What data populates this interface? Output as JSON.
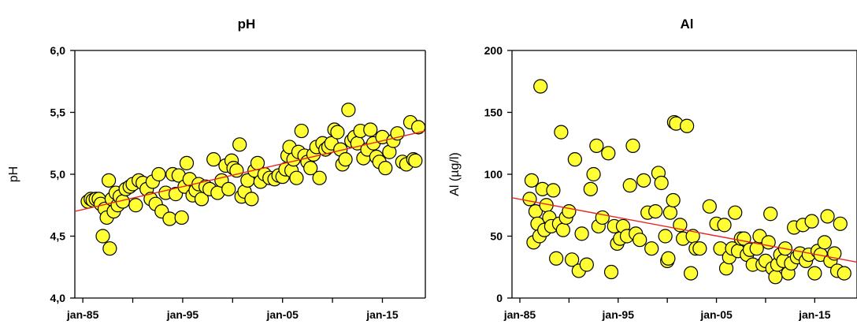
{
  "chart_data": [
    {
      "type": "scatter",
      "title": "pH",
      "xlabel": "",
      "ylabel": "pH",
      "ylim": [
        4.0,
        6.0
      ],
      "yticks": [
        4.0,
        4.5,
        5.0,
        5.5,
        6.0
      ],
      "ytick_labels": [
        "4,0",
        "4,5",
        "5,0",
        "5,5",
        "6,0"
      ],
      "xticks": [
        1985,
        1995,
        2005,
        2015
      ],
      "xtick_labels": [
        "jan-85",
        "jan-95",
        "jan-05",
        "jan-15"
      ],
      "xlim": [
        1984.2,
        2019.3
      ],
      "grid": false,
      "trendline": {
        "x": [
          1984.2,
          2019.3
        ],
        "y": [
          4.7,
          5.35
        ],
        "color": "#e8261f"
      },
      "marker": {
        "fill": "#ffff33",
        "stroke": "#000000"
      },
      "series": [
        {
          "points": [
            [
              1985.5,
              4.78
            ],
            [
              1985.8,
              4.8
            ],
            [
              1986.0,
              4.79
            ],
            [
              1986.3,
              4.8
            ],
            [
              1986.6,
              4.8
            ],
            [
              1986.8,
              4.76
            ],
            [
              1987.0,
              4.5
            ],
            [
              1987.2,
              4.72
            ],
            [
              1987.4,
              4.65
            ],
            [
              1987.6,
              4.95
            ],
            [
              1987.7,
              4.4
            ],
            [
              1987.9,
              4.8
            ],
            [
              1988.1,
              4.7
            ],
            [
              1988.3,
              4.85
            ],
            [
              1988.5,
              4.75
            ],
            [
              1988.7,
              4.82
            ],
            [
              1989.0,
              4.78
            ],
            [
              1989.3,
              4.88
            ],
            [
              1989.7,
              4.9
            ],
            [
              1990.0,
              4.92
            ],
            [
              1990.3,
              4.75
            ],
            [
              1990.6,
              4.95
            ],
            [
              1991.0,
              4.93
            ],
            [
              1991.4,
              4.88
            ],
            [
              1991.8,
              4.8
            ],
            [
              1992.0,
              4.94
            ],
            [
              1992.3,
              4.76
            ],
            [
              1992.6,
              5.0
            ],
            [
              1992.9,
              4.7
            ],
            [
              1993.3,
              4.85
            ],
            [
              1993.7,
              4.64
            ],
            [
              1994.0,
              5.0
            ],
            [
              1994.3,
              4.84
            ],
            [
              1994.6,
              4.99
            ],
            [
              1994.9,
              4.65
            ],
            [
              1995.2,
              4.9
            ],
            [
              1995.4,
              5.09
            ],
            [
              1995.7,
              4.96
            ],
            [
              1996.0,
              4.83
            ],
            [
              1996.3,
              4.87
            ],
            [
              1996.6,
              4.92
            ],
            [
              1996.9,
              4.8
            ],
            [
              1997.3,
              4.9
            ],
            [
              1997.7,
              4.88
            ],
            [
              1998.1,
              5.12
            ],
            [
              1998.5,
              4.85
            ],
            [
              1998.9,
              4.95
            ],
            [
              1999.3,
              5.07
            ],
            [
              1999.6,
              4.88
            ],
            [
              1999.9,
              5.11
            ],
            [
              2000.1,
              5.05
            ],
            [
              2000.4,
              5.03
            ],
            [
              2000.7,
              5.24
            ],
            [
              2000.9,
              4.82
            ],
            [
              2001.2,
              4.86
            ],
            [
              2001.5,
              4.95
            ],
            [
              2001.9,
              4.8
            ],
            [
              2002.2,
              5.03
            ],
            [
              2002.5,
              5.09
            ],
            [
              2002.8,
              4.94
            ],
            [
              2003.2,
              5.0
            ],
            [
              2003.7,
              4.97
            ],
            [
              2004.2,
              4.96
            ],
            [
              2004.6,
              4.99
            ],
            [
              2005.0,
              4.98
            ],
            [
              2005.3,
              5.04
            ],
            [
              2005.5,
              5.15
            ],
            [
              2005.7,
              5.22
            ],
            [
              2005.9,
              5.03
            ],
            [
              2006.1,
              5.12
            ],
            [
              2006.4,
              4.97
            ],
            [
              2006.6,
              5.18
            ],
            [
              2006.9,
              5.35
            ],
            [
              2007.2,
              5.15
            ],
            [
              2007.5,
              5.1
            ],
            [
              2007.8,
              5.05
            ],
            [
              2008.1,
              5.16
            ],
            [
              2008.4,
              5.22
            ],
            [
              2008.7,
              4.97
            ],
            [
              2009.0,
              5.25
            ],
            [
              2009.3,
              5.2
            ],
            [
              2009.6,
              5.22
            ],
            [
              2009.9,
              5.25
            ],
            [
              2010.2,
              5.36
            ],
            [
              2010.5,
              5.34
            ],
            [
              2010.8,
              5.2
            ],
            [
              2011.0,
              5.08
            ],
            [
              2011.3,
              5.12
            ],
            [
              2011.6,
              5.52
            ],
            [
              2011.9,
              5.27
            ],
            [
              2012.2,
              5.3
            ],
            [
              2012.5,
              5.25
            ],
            [
              2012.8,
              5.35
            ],
            [
              2013.1,
              5.13
            ],
            [
              2013.5,
              5.2
            ],
            [
              2013.8,
              5.36
            ],
            [
              2014.1,
              5.25
            ],
            [
              2014.4,
              5.14
            ],
            [
              2014.7,
              5.1
            ],
            [
              2015.0,
              5.3
            ],
            [
              2015.3,
              5.05
            ],
            [
              2015.7,
              5.18
            ],
            [
              2016.1,
              5.27
            ],
            [
              2016.5,
              5.33
            ],
            [
              2017.0,
              5.1
            ],
            [
              2017.4,
              5.08
            ],
            [
              2017.8,
              5.42
            ],
            [
              2018.1,
              5.12
            ],
            [
              2018.3,
              5.11
            ],
            [
              2018.6,
              5.38
            ]
          ]
        }
      ]
    },
    {
      "type": "scatter",
      "title": "Al",
      "xlabel": "",
      "ylabel": "Al (µg/l)",
      "ylim": [
        0,
        200
      ],
      "yticks": [
        0,
        50,
        100,
        150,
        200
      ],
      "ytick_labels": [
        "0",
        "50",
        "100",
        "150",
        "200"
      ],
      "xticks": [
        1985,
        1995,
        2005,
        2015
      ],
      "xtick_labels": [
        "jan-85",
        "jan-95",
        "jan-05",
        "jan-15"
      ],
      "xlim": [
        1984.2,
        2019.3
      ],
      "grid": false,
      "trendline": {
        "x": [
          1984.2,
          2019.3
        ],
        "y": [
          81,
          29
        ],
        "color": "#e8261f"
      },
      "marker": {
        "fill": "#ffff33",
        "stroke": "#000000"
      },
      "series": [
        {
          "points": [
            [
              1986.0,
              80
            ],
            [
              1986.2,
              95
            ],
            [
              1986.4,
              45
            ],
            [
              1986.6,
              70
            ],
            [
              1986.8,
              60
            ],
            [
              1987.0,
              50
            ],
            [
              1987.1,
              171
            ],
            [
              1987.3,
              88
            ],
            [
              1987.5,
              55
            ],
            [
              1987.7,
              75
            ],
            [
              1988.0,
              65
            ],
            [
              1988.2,
              58
            ],
            [
              1988.4,
              87
            ],
            [
              1988.7,
              32
            ],
            [
              1989.0,
              60
            ],
            [
              1989.2,
              134
            ],
            [
              1989.4,
              55
            ],
            [
              1989.7,
              65
            ],
            [
              1990.0,
              70
            ],
            [
              1990.3,
              31
            ],
            [
              1990.6,
              112
            ],
            [
              1991.0,
              22
            ],
            [
              1991.3,
              52
            ],
            [
              1991.8,
              27
            ],
            [
              1992.2,
              88
            ],
            [
              1992.5,
              100
            ],
            [
              1992.8,
              123
            ],
            [
              1993.0,
              58
            ],
            [
              1993.4,
              65
            ],
            [
              1994.0,
              117
            ],
            [
              1994.3,
              21
            ],
            [
              1994.6,
              58
            ],
            [
              1994.9,
              44
            ],
            [
              1995.2,
              48
            ],
            [
              1995.5,
              58
            ],
            [
              1995.9,
              50
            ],
            [
              1996.2,
              91
            ],
            [
              1996.5,
              123
            ],
            [
              1996.8,
              52
            ],
            [
              1997.2,
              47
            ],
            [
              1997.6,
              95
            ],
            [
              1998.0,
              69
            ],
            [
              1998.4,
              40
            ],
            [
              1998.8,
              70
            ],
            [
              1999.1,
              101
            ],
            [
              1999.4,
              93
            ],
            [
              1999.8,
              50
            ],
            [
              2000.0,
              30
            ],
            [
              2000.1,
              32
            ],
            [
              2000.3,
              69
            ],
            [
              2000.6,
              79
            ],
            [
              2000.7,
              142
            ],
            [
              2000.9,
              141
            ],
            [
              2001.3,
              59
            ],
            [
              2001.6,
              48
            ],
            [
              2002.0,
              139
            ],
            [
              2002.4,
              20
            ],
            [
              2002.6,
              50
            ],
            [
              2002.9,
              40
            ],
            [
              2003.3,
              40
            ],
            [
              2004.3,
              74
            ],
            [
              2005.0,
              60
            ],
            [
              2005.4,
              40
            ],
            [
              2005.8,
              59
            ],
            [
              2006.0,
              24
            ],
            [
              2006.3,
              33
            ],
            [
              2006.6,
              40
            ],
            [
              2006.9,
              69
            ],
            [
              2007.2,
              38
            ],
            [
              2007.5,
              48
            ],
            [
              2007.8,
              48
            ],
            [
              2008.1,
              35
            ],
            [
              2008.4,
              39
            ],
            [
              2008.7,
              27
            ],
            [
              2009.1,
              40
            ],
            [
              2009.4,
              50
            ],
            [
              2009.7,
              27
            ],
            [
              2010.0,
              30
            ],
            [
              2010.3,
              45
            ],
            [
              2010.5,
              68
            ],
            [
              2010.7,
              24
            ],
            [
              2011.0,
              17
            ],
            [
              2011.2,
              27
            ],
            [
              2011.5,
              35
            ],
            [
              2011.8,
              30
            ],
            [
              2012.0,
              40
            ],
            [
              2012.3,
              20
            ],
            [
              2012.6,
              28
            ],
            [
              2012.9,
              57
            ],
            [
              2013.2,
              33
            ],
            [
              2013.5,
              36
            ],
            [
              2013.8,
              59
            ],
            [
              2014.1,
              30
            ],
            [
              2014.4,
              35
            ],
            [
              2014.7,
              62
            ],
            [
              2015.0,
              20
            ],
            [
              2015.3,
              38
            ],
            [
              2015.6,
              35
            ],
            [
              2016.0,
              45
            ],
            [
              2016.3,
              66
            ],
            [
              2016.6,
              30
            ],
            [
              2017.0,
              36
            ],
            [
              2017.3,
              22
            ],
            [
              2017.6,
              60
            ],
            [
              2018.0,
              20
            ]
          ]
        }
      ]
    }
  ]
}
